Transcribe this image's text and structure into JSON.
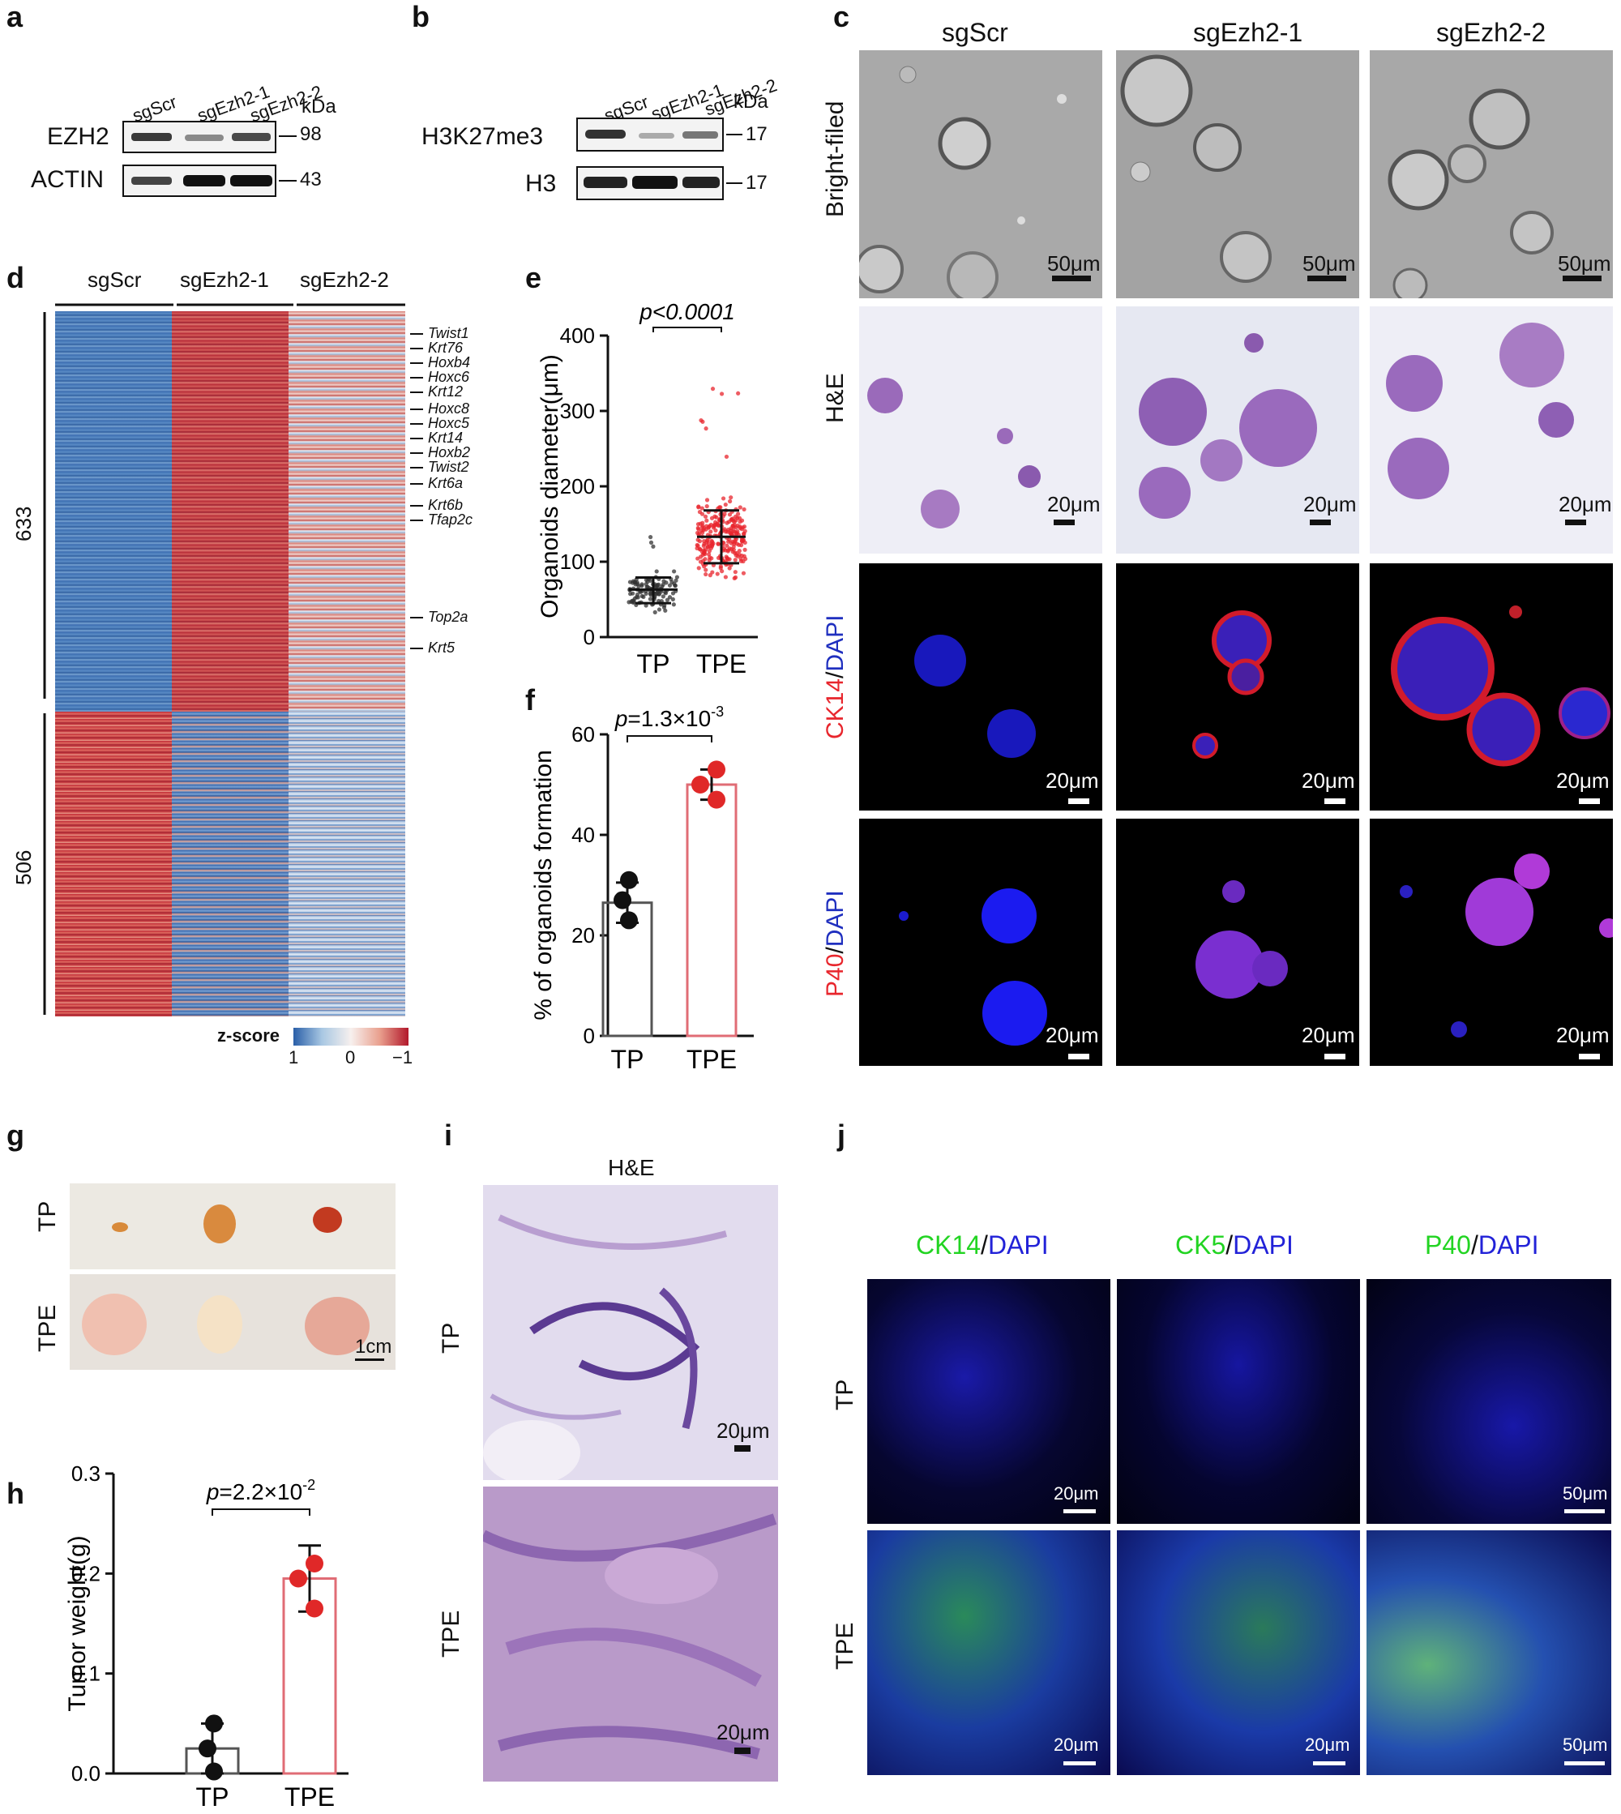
{
  "panel_labels": {
    "a": "a",
    "b": "b",
    "c": "c",
    "d": "d",
    "e": "e",
    "f": "f",
    "g": "g",
    "h": "h",
    "i": "i",
    "j": "j"
  },
  "panel_a": {
    "lanes": [
      "sgScr",
      "sgEzh2-1",
      "sgEzh2-2"
    ],
    "unit": "kDa",
    "rows": [
      {
        "name": "EZH2",
        "mw": "98"
      },
      {
        "name": "ACTIN",
        "mw": "43"
      }
    ]
  },
  "panel_b": {
    "lanes": [
      "sgScr",
      "sgEzh2-1",
      "sgEzh2-2"
    ],
    "unit": "kDa",
    "rows": [
      {
        "name": "H3K27me3",
        "mw": "17"
      },
      {
        "name": "H3",
        "mw": "17"
      }
    ]
  },
  "panel_c": {
    "columns": [
      "sgScr",
      "sgEzh2-1",
      "sgEzh2-2"
    ],
    "rows": [
      {
        "label": "Bright-filed",
        "scale": "50μm"
      },
      {
        "label": "H&E",
        "scale": "20μm"
      },
      {
        "label_red": "CK14",
        "label_sep": "/",
        "label_blue": "DAPI",
        "scale": "20μm"
      },
      {
        "label_red": "P40",
        "label_sep": "/",
        "label_blue": "DAPI",
        "scale": "20μm"
      }
    ]
  },
  "panel_d": {
    "groups": [
      "sgScr",
      "sgEzh2-1",
      "sgEzh2-2"
    ],
    "clusters": [
      "633",
      "506"
    ],
    "genes": [
      "Twist1",
      "Krt76",
      "Hoxb4",
      "Hoxc6",
      "Krt12",
      "Hoxc8",
      "Hoxc5",
      "Krt14",
      "Hoxb2",
      "Twist2",
      "Krt6a",
      "Krt6b",
      "Tfap2c",
      "Top2a",
      "Krt5"
    ],
    "colorbar": {
      "label": "z-score",
      "ticks": [
        "1",
        "0",
        "−1"
      ],
      "colors": [
        "#2a5fa8",
        "#f7f0ee",
        "#b2182b"
      ]
    }
  },
  "panel_g": {
    "rows": [
      "TP",
      "TPE"
    ],
    "scale": "1cm"
  },
  "panel_i": {
    "title": "H&E",
    "rows": [
      "TP",
      "TPE"
    ],
    "scale": "20μm"
  },
  "panel_j": {
    "columns": [
      {
        "marker": "CK14",
        "sep": "/",
        "dapi": "DAPI"
      },
      {
        "marker": "CK5",
        "sep": "/",
        "dapi": "DAPI"
      },
      {
        "marker": "P40",
        "sep": "/",
        "dapi": "DAPI"
      }
    ],
    "rows": [
      "TP",
      "TPE"
    ],
    "scales": [
      "20μm",
      "20μm",
      "50μm"
    ]
  },
  "chart_data": [
    {
      "panel": "e",
      "type": "scatter",
      "ylabel": "Organoids diameter(μm)",
      "categories": [
        "TP",
        "TPE"
      ],
      "ylim": [
        0,
        400
      ],
      "yticks": [
        0,
        100,
        200,
        300,
        400
      ],
      "mean": [
        63,
        133
      ],
      "sd_low": [
        45,
        98
      ],
      "sd_high": [
        79,
        168
      ],
      "range_low": [
        30,
        40
      ],
      "range_high": [
        140,
        345
      ],
      "pvalue": "p<0.0001",
      "colors": [
        "#333333",
        "#e8262d"
      ]
    },
    {
      "panel": "f",
      "type": "bar",
      "ylabel": "% of organoids formation",
      "categories": [
        "TP",
        "TPE"
      ],
      "ylim": [
        0,
        60
      ],
      "yticks": [
        0,
        20,
        40,
        60
      ],
      "values": [
        26.5,
        50
      ],
      "errors": [
        4,
        3
      ],
      "points": [
        [
          31,
          27,
          23
        ],
        [
          53,
          50,
          47
        ]
      ],
      "pvalue": "p=1.3×10",
      "pvalue_exp": "-3",
      "colors": [
        "#555555",
        "#e06c75"
      ]
    },
    {
      "panel": "h",
      "type": "bar",
      "ylabel": "Tumor weight(g)",
      "categories": [
        "TP",
        "TPE"
      ],
      "ylim": [
        0,
        0.3
      ],
      "yticks": [
        "0.0",
        "0.1",
        "0.2",
        "0.3"
      ],
      "values": [
        0.025,
        0.195
      ],
      "errors": [
        0.025,
        0.033
      ],
      "points": [
        [
          0.05,
          0.025,
          0.002
        ],
        [
          0.21,
          0.195,
          0.165
        ]
      ],
      "pvalue": "p=2.2×10",
      "pvalue_exp": "-2",
      "colors": [
        "#555555",
        "#e06c75"
      ]
    }
  ]
}
